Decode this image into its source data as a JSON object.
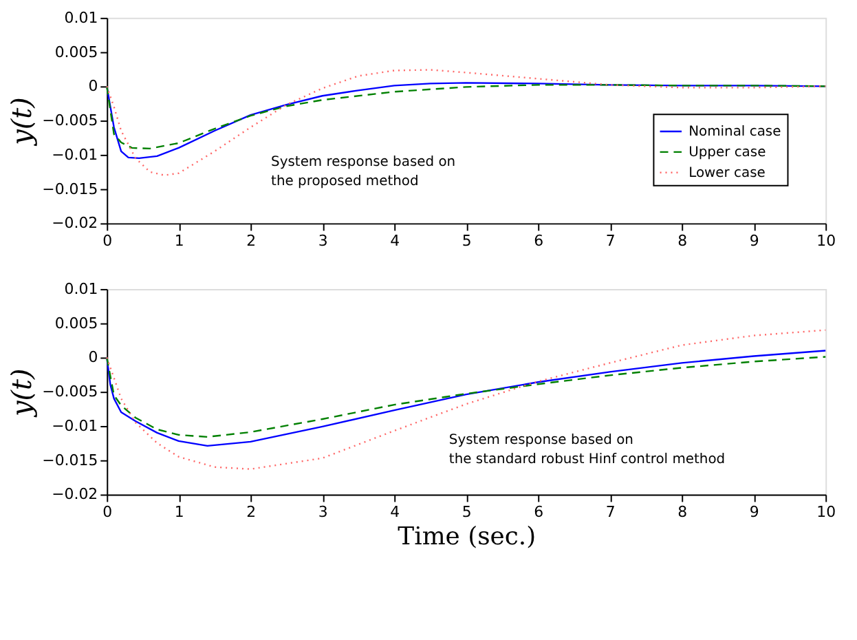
{
  "chart_data": [
    {
      "type": "line",
      "ylabel": "y(t)",
      "xlim": [
        0,
        10
      ],
      "ylim": [
        -0.02,
        0.01
      ],
      "xticks": [
        0,
        1,
        2,
        3,
        4,
        5,
        6,
        7,
        8,
        9,
        10
      ],
      "yticks": [
        -0.02,
        -0.015,
        -0.01,
        -0.005,
        0,
        0.005,
        0.01
      ],
      "grid": false,
      "legend": "bottom right",
      "annotations": [
        "System response based on",
        "the proposed method"
      ],
      "series": [
        {
          "name": "Nominal case",
          "color": "#0000ff",
          "line_style": "solid",
          "x": [
            0,
            0.1,
            0.2,
            0.3,
            0.45,
            0.7,
            1,
            1.5,
            2,
            2.5,
            3,
            3.5,
            4,
            4.5,
            5,
            6,
            7,
            8,
            9,
            10
          ],
          "values": [
            0,
            -0.006,
            -0.0095,
            -0.0104,
            -0.0105,
            -0.0102,
            -0.009,
            -0.0065,
            -0.0042,
            -0.0027,
            -0.0014,
            -0.0006,
            0.0001,
            0.0004,
            0.0005,
            0.0004,
            0.0002,
            0.0001,
            0.0001,
            0
          ]
        },
        {
          "name": "Upper case",
          "color": "#008000",
          "line_style": "dashed",
          "x": [
            0,
            0.1,
            0.2,
            0.35,
            0.6,
            1,
            1.5,
            2,
            2.5,
            3,
            4,
            5,
            6,
            7,
            8,
            9,
            10
          ],
          "values": [
            0,
            -0.007,
            -0.0082,
            -0.009,
            -0.0091,
            -0.0083,
            -0.0062,
            -0.0043,
            -0.0029,
            -0.002,
            -0.0008,
            -0.0001,
            0.0002,
            0.0002,
            0.0001,
            0.0001,
            0
          ]
        },
        {
          "name": "Lower case",
          "color": "#ff6666",
          "line_style": "dotted",
          "x": [
            0,
            0.1,
            0.2,
            0.4,
            0.6,
            0.8,
            1,
            1.5,
            2,
            2.5,
            3,
            3.5,
            4,
            4.5,
            5,
            6,
            7,
            8,
            9,
            10
          ],
          "values": [
            0,
            -0.003,
            -0.0065,
            -0.0105,
            -0.0125,
            -0.013,
            -0.0127,
            -0.0095,
            -0.006,
            -0.0027,
            -0.0003,
            0.0015,
            0.0023,
            0.0024,
            0.002,
            0.0011,
            0.0002,
            -0.0002,
            -0.0002,
            0
          ]
        }
      ]
    },
    {
      "type": "line",
      "ylabel": "y(t)",
      "xlabel": "Time (sec.)",
      "xlim": [
        0,
        10
      ],
      "ylim": [
        -0.02,
        0.01
      ],
      "xticks": [
        0,
        1,
        2,
        3,
        4,
        5,
        6,
        7,
        8,
        9,
        10
      ],
      "yticks": [
        -0.02,
        -0.015,
        -0.01,
        -0.005,
        0,
        0.005,
        0.01
      ],
      "grid": false,
      "legend": false,
      "annotations": [
        "System response based on",
        "the standard robust Hinf control method"
      ],
      "series": [
        {
          "color": "#0000ff",
          "line_style": "solid",
          "x": [
            0,
            0.05,
            0.1,
            0.2,
            0.4,
            0.7,
            1,
            1.4,
            2,
            3,
            4,
            5,
            6,
            7,
            8,
            9,
            10
          ],
          "values": [
            0,
            -0.004,
            -0.006,
            -0.008,
            -0.0093,
            -0.011,
            -0.0122,
            -0.0129,
            -0.0123,
            -0.0101,
            -0.0077,
            -0.0054,
            -0.0036,
            -0.0021,
            -0.0008,
            0.0002,
            0.001
          ]
        },
        {
          "color": "#008000",
          "line_style": "dashed",
          "x": [
            0,
            0.1,
            0.2,
            0.4,
            0.7,
            1,
            1.4,
            2,
            3,
            4,
            5,
            6,
            7,
            8,
            9,
            10
          ],
          "values": [
            0,
            -0.0055,
            -0.007,
            -0.0088,
            -0.0105,
            -0.0113,
            -0.0116,
            -0.0109,
            -0.009,
            -0.0069,
            -0.0053,
            -0.0039,
            -0.0026,
            -0.0015,
            -0.0006,
            0.0001
          ]
        },
        {
          "color": "#ff6666",
          "line_style": "dotted",
          "x": [
            0,
            0.1,
            0.2,
            0.4,
            0.7,
            1,
            1.5,
            2,
            3,
            4,
            5,
            6,
            7,
            8,
            9,
            10
          ],
          "values": [
            0,
            -0.003,
            -0.006,
            -0.0095,
            -0.0125,
            -0.0145,
            -0.016,
            -0.0163,
            -0.0147,
            -0.0107,
            -0.0068,
            -0.0035,
            -0.0008,
            0.0018,
            0.0032,
            0.004
          ]
        }
      ]
    }
  ]
}
